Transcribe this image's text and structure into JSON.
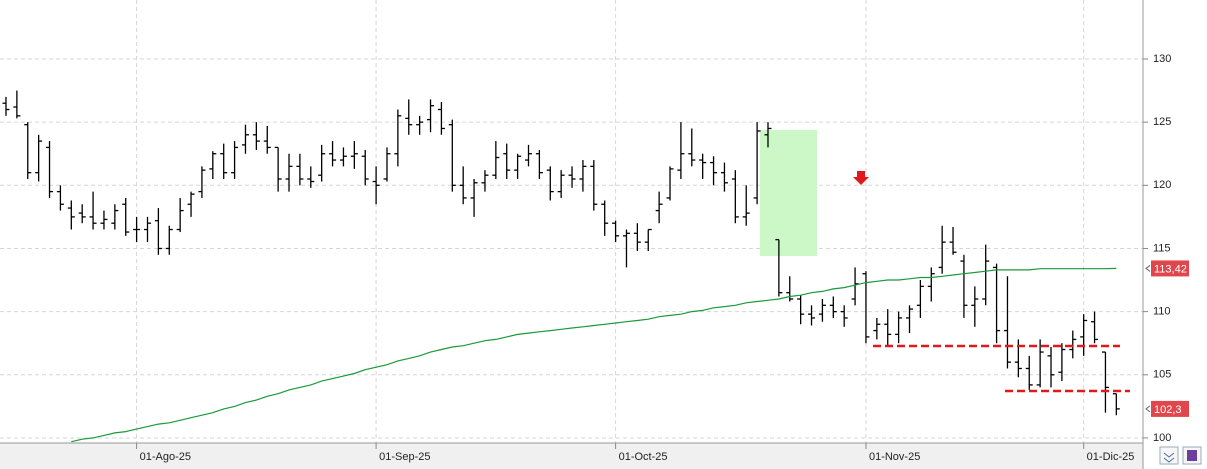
{
  "chart_data": {
    "type": "ohlc",
    "color": "#000000",
    "ylim": [
      99.6,
      134.67
    ],
    "yticks": [
      100,
      105,
      110,
      115,
      120,
      125,
      130
    ],
    "grid": true,
    "categories": [
      null,
      null,
      null,
      null,
      null,
      null,
      null,
      null,
      null,
      null,
      null,
      null,
      "01-Ago-25",
      null,
      null,
      null,
      null,
      null,
      null,
      null,
      null,
      null,
      null,
      null,
      null,
      null,
      null,
      null,
      null,
      null,
      null,
      null,
      null,
      null,
      "01-Sep-25",
      null,
      null,
      null,
      null,
      null,
      null,
      null,
      null,
      null,
      null,
      null,
      null,
      null,
      null,
      null,
      null,
      null,
      null,
      null,
      null,
      null,
      "01-Oct-25",
      null,
      null,
      null,
      null,
      null,
      null,
      null,
      null,
      null,
      null,
      null,
      null,
      null,
      null,
      null,
      null,
      null,
      null,
      null,
      null,
      null,
      null,
      "01-Nov-25",
      null,
      null,
      null,
      null,
      null,
      null,
      null,
      null,
      null,
      null,
      null,
      null,
      null,
      null,
      null,
      null,
      null,
      null,
      null,
      "01-Dic-25",
      null,
      null,
      null
    ],
    "open": [
      126.5,
      126.2,
      124.8,
      121,
      123,
      119.5,
      118.2,
      117.8,
      117.5,
      117,
      117,
      118.5,
      116.5,
      116.5,
      117.2,
      115,
      116.5,
      118.5,
      119.5,
      121.3,
      122.5,
      121,
      123.2,
      124,
      123.5,
      123,
      120.5,
      121.5,
      120.5,
      120.8,
      122.5,
      122,
      122.3,
      122.3,
      120.3,
      120.5,
      122.5,
      125.3,
      124.8,
      125.2,
      126,
      124.8,
      120,
      119,
      120.2,
      120.8,
      122.5,
      121.2,
      122,
      122.5,
      121.2,
      119.5,
      120.8,
      120.5,
      121.5,
      118.5,
      117,
      116,
      116.2,
      115.5,
      118,
      119,
      121.2,
      122.5,
      122,
      121.8,
      121,
      120.5,
      117.5,
      119,
      124,
      115.7,
      111.5,
      111,
      109.8,
      109.8,
      110.5,
      110,
      111,
      113,
      108.5,
      109,
      108.2,
      109.5,
      110.5,
      112,
      113.5,
      115.5,
      114,
      110.5,
      111,
      113.5,
      108.5,
      106,
      105.5,
      104.2,
      106.5,
      105.2,
      107,
      108,
      109.2,
      106.8,
      103.5
    ],
    "high": [
      127,
      127.5,
      125,
      124,
      123.5,
      120,
      118.8,
      118.5,
      119.5,
      118,
      118.5,
      119,
      117.5,
      117.5,
      118.2,
      116.8,
      119,
      119.5,
      121.5,
      122.7,
      123.3,
      123.5,
      124.8,
      125,
      124.7,
      123,
      122.5,
      122.5,
      121.5,
      123.2,
      123.5,
      123,
      123.5,
      122.8,
      121.5,
      123,
      126,
      126.8,
      125.5,
      126.8,
      126.6,
      125.2,
      121.5,
      120.5,
      121.2,
      123.5,
      123.3,
      122.5,
      123.2,
      122.8,
      121.5,
      121.2,
      121.5,
      122,
      122,
      118.8,
      117.2,
      116.5,
      117,
      116.5,
      119.5,
      121.5,
      125,
      124.5,
      122.5,
      122.3,
      121.8,
      121.2,
      120,
      125,
      125,
      115.7,
      112.8,
      111.3,
      110.5,
      111,
      111.2,
      110.5,
      113.5,
      113.2,
      109.5,
      110.2,
      110,
      110.5,
      112.5,
      113.5,
      116.8,
      116.7,
      114.5,
      112,
      115.3,
      113.8,
      112.8,
      107.8,
      106.5,
      107.8,
      107.2,
      107.5,
      108.5,
      109.8,
      110,
      106.8,
      103.5
    ],
    "low": [
      125.5,
      125.3,
      120.5,
      120.3,
      119,
      118,
      116.5,
      117,
      116.5,
      116.5,
      116.5,
      116,
      115.5,
      115.5,
      114.5,
      114.5,
      116.3,
      117.5,
      119,
      120.5,
      120.5,
      120.5,
      122.5,
      122.8,
      122.5,
      119.5,
      119.5,
      120,
      119.8,
      120.3,
      121.5,
      121.5,
      121.3,
      120,
      118.5,
      120.3,
      121.5,
      124,
      124,
      124.2,
      124,
      119.5,
      118.5,
      117.5,
      119.5,
      120.5,
      120.5,
      120.5,
      121.5,
      120.5,
      118.8,
      119,
      119.8,
      119.5,
      118,
      116,
      115.5,
      113.5,
      114.8,
      114.8,
      117,
      118.8,
      120.5,
      121.5,
      120.5,
      120,
      119.5,
      117,
      116.8,
      118.5,
      123,
      111.2,
      110.8,
      109,
      108.9,
      109.2,
      109.5,
      108.8,
      110.5,
      107.5,
      107.8,
      107.2,
      107.5,
      108.3,
      109.5,
      110.8,
      113,
      114.5,
      109.5,
      108.8,
      110.5,
      107.5,
      105.5,
      104.8,
      103.8,
      104,
      104,
      104.5,
      106.3,
      106.5,
      107.5,
      102,
      101.8
    ],
    "close": [
      126,
      125.5,
      121,
      123.5,
      119.5,
      118.5,
      117.5,
      117.5,
      117,
      117.3,
      118,
      116.3,
      116.5,
      117,
      115,
      116.5,
      118,
      119.3,
      121.2,
      122.5,
      121,
      123,
      124,
      123.5,
      123,
      120.5,
      121.5,
      120.5,
      120.3,
      122.5,
      122,
      122.3,
      122.5,
      120.5,
      120,
      122.5,
      125.5,
      124.8,
      125,
      126.3,
      124.5,
      120,
      119,
      120.2,
      120.8,
      122.2,
      121.2,
      122.3,
      122.5,
      121,
      119.5,
      120.8,
      120.5,
      121.5,
      118.5,
      117,
      116,
      116.2,
      115.5,
      116.5,
      118.5,
      121.3,
      122.5,
      122,
      121.8,
      121,
      120.2,
      117.5,
      117.8,
      124.3,
      124.5,
      111.5,
      111,
      109.8,
      109.5,
      110.5,
      110,
      109.5,
      112.2,
      108,
      109,
      108.2,
      109.5,
      110.2,
      112,
      113,
      115.5,
      114.7,
      110.5,
      111,
      114,
      108.5,
      106,
      105.5,
      104.2,
      106.8,
      105,
      107,
      107.8,
      109.3,
      107.8,
      104,
      102.3
    ],
    "ma": {
      "color": "#1a9a3a",
      "values": [
        null,
        null,
        null,
        null,
        null,
        null,
        99.7,
        99.9,
        100.0,
        100.2,
        100.4,
        100.5,
        100.7,
        100.9,
        101.1,
        101.2,
        101.4,
        101.6,
        101.8,
        102.0,
        102.3,
        102.5,
        102.8,
        103.0,
        103.3,
        103.5,
        103.8,
        104.0,
        104.2,
        104.5,
        104.7,
        104.9,
        105.1,
        105.4,
        105.6,
        105.8,
        106.1,
        106.3,
        106.5,
        106.8,
        107.0,
        107.2,
        107.3,
        107.5,
        107.7,
        107.8,
        108.0,
        108.2,
        108.3,
        108.4,
        108.5,
        108.6,
        108.7,
        108.8,
        108.9,
        109.0,
        109.1,
        109.2,
        109.3,
        109.4,
        109.6,
        109.7,
        109.8,
        110.0,
        110.1,
        110.3,
        110.4,
        110.5,
        110.7,
        110.8,
        110.9,
        111.0,
        111.2,
        111.3,
        111.5,
        111.6,
        111.8,
        111.9,
        112.1,
        112.3,
        112.4,
        112.5,
        112.5,
        112.6,
        112.7,
        112.7,
        112.8,
        112.9,
        113.0,
        113.1,
        113.2,
        113.3,
        113.3,
        113.3,
        113.3,
        113.4,
        113.4,
        113.4,
        113.4,
        113.4,
        113.4,
        113.4,
        113.42
      ]
    },
    "price_labels": [
      {
        "value": 113.42,
        "label": "113,42"
      },
      {
        "value": 102.3,
        "label": "102,3"
      }
    ],
    "price_label_color": "#e0474c"
  }
}
